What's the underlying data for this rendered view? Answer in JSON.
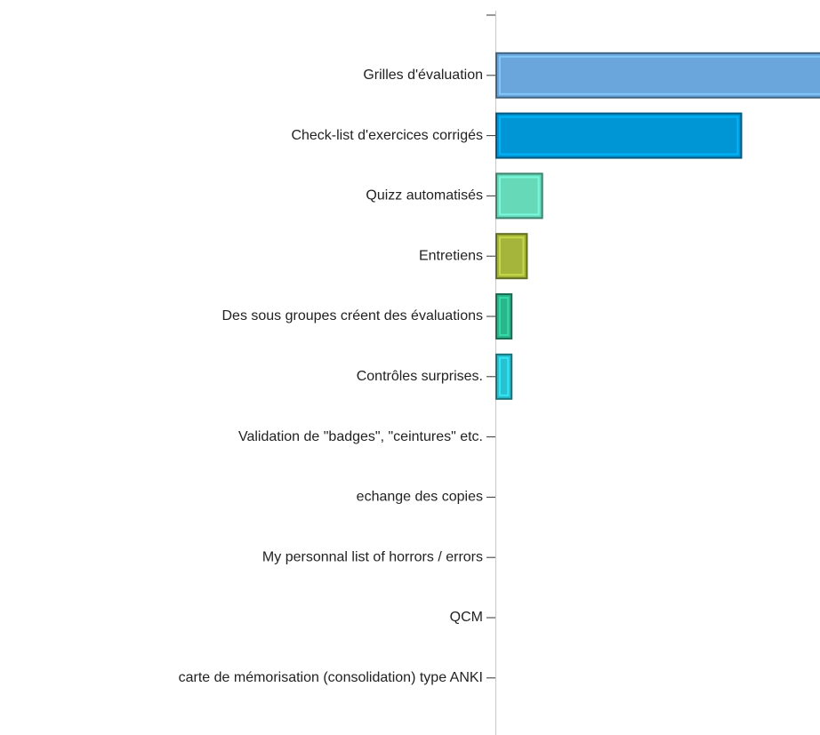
{
  "chart_data": {
    "type": "hbar",
    "categories": [
      null,
      "Grilles d'évaluation",
      "Check-list d'exercices corrigés",
      "Quizz automatisés",
      "Entretiens",
      "Des sous groupes créent des évaluations",
      "Contrôles surprises.",
      "Validation de \"badges\", \"ceintures\" etc.",
      "echange des copies",
      "My personnal list of horrors / errors",
      "QCM",
      "carte de mémorisation (consolidation) type ANKI"
    ],
    "values": [
      null,
      22,
      16,
      3,
      2,
      1,
      1,
      0,
      0,
      0,
      0,
      0
    ],
    "colors": [
      null,
      "#6aa6dc",
      "#0096d6",
      "#66d9b8",
      "#a3b53a",
      "#2bb58a",
      "#29c0d0",
      "#6aa6dc",
      "#0096d6",
      "#66d9b8",
      "#a3b53a",
      "#2bb58a"
    ],
    "xlim": [
      0,
      21.2
    ]
  }
}
